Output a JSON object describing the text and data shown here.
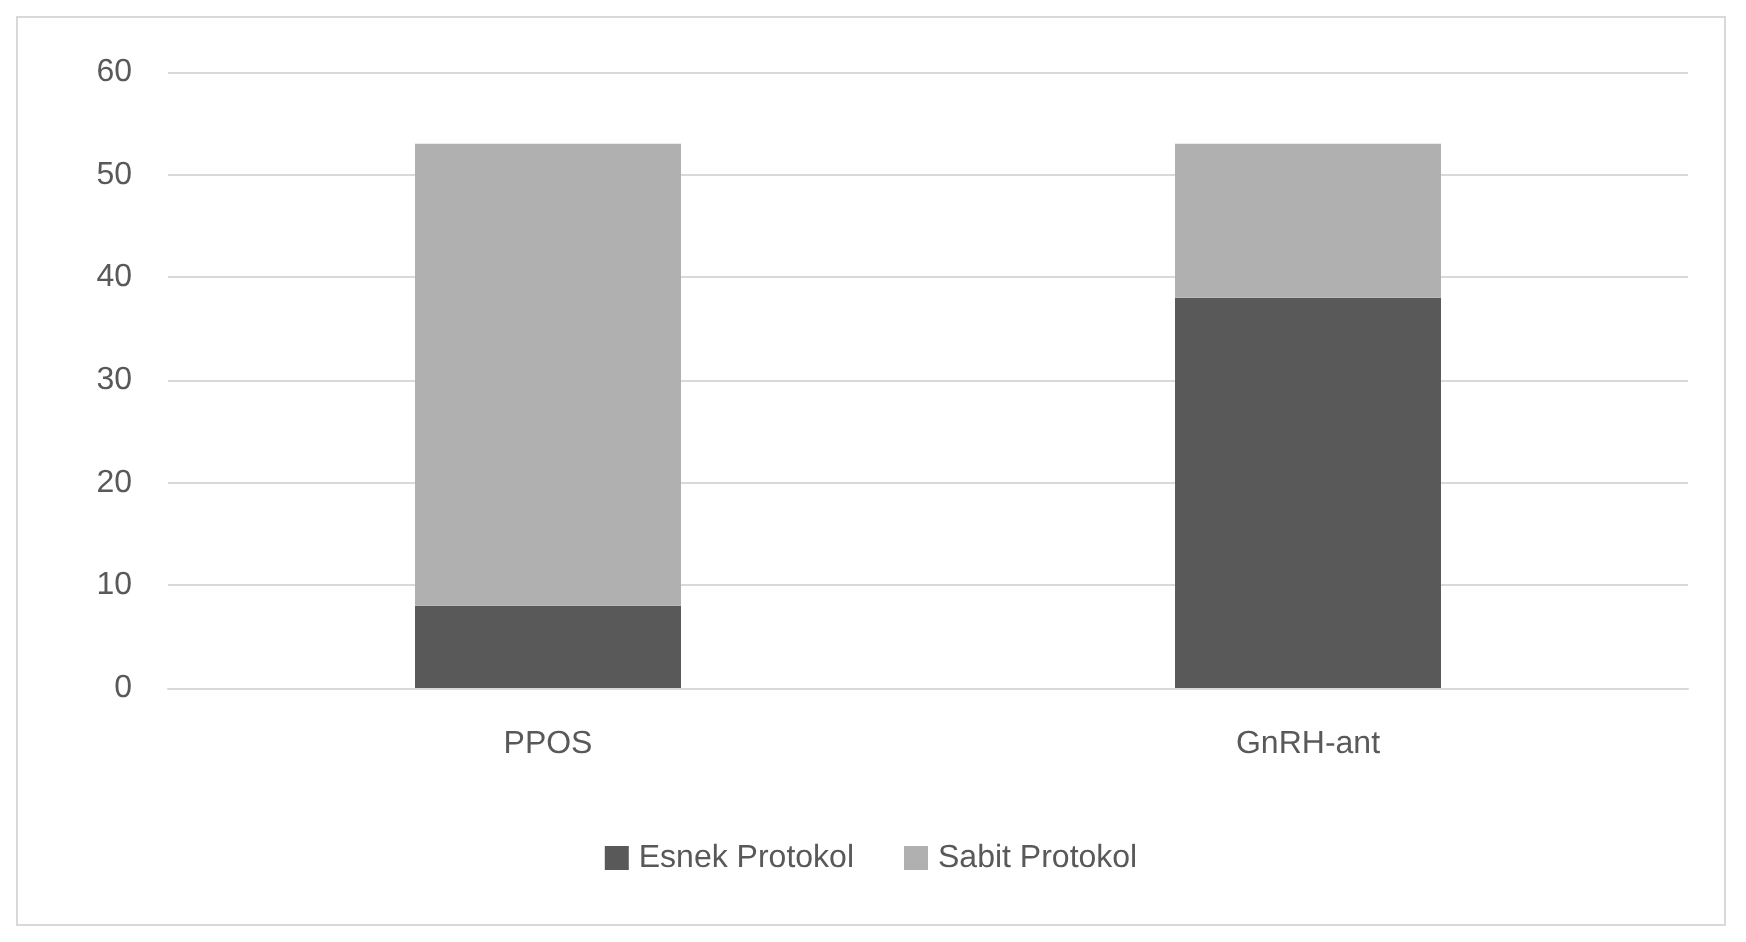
{
  "chart_data": {
    "type": "bar",
    "stacked": true,
    "categories": [
      "PPOS",
      "GnRH-ant"
    ],
    "series": [
      {
        "name": "Esnek Protokol",
        "color": "#595959",
        "values": [
          8,
          38
        ]
      },
      {
        "name": "Sabit Protokol",
        "color": "#b0b0b0",
        "values": [
          45,
          15
        ]
      }
    ],
    "ylim": [
      0,
      60
    ],
    "yticks": [
      0,
      10,
      20,
      30,
      40,
      50,
      60
    ],
    "grid": "y",
    "legend": "bottom"
  }
}
